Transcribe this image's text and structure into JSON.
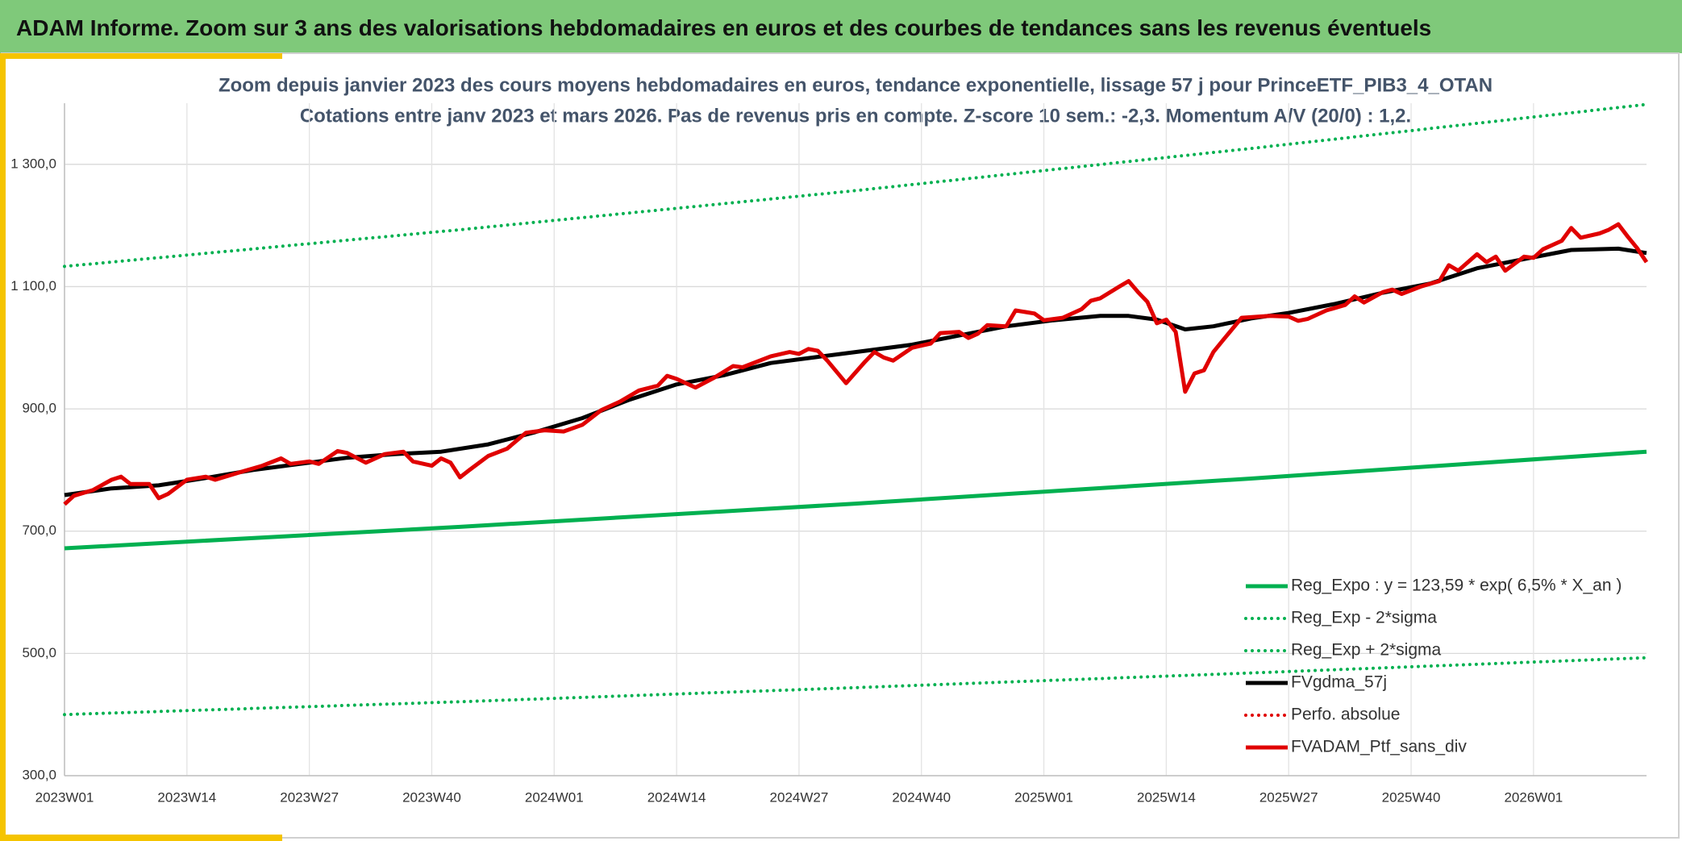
{
  "header": {
    "title": "ADAM Informe. Zoom sur 3 ans des valorisations hebdomadaires en euros et des courbes de tendances sans les revenus éventuels"
  },
  "chart_data": {
    "type": "line",
    "title": "Zoom depuis janvier 2023 des cours moyens hebdomadaires en euros, tendance exponentielle, lissage 57 j pour PrinceETF_PIB3_4_OTAN",
    "subtitle": "Cotations entre janv 2023 et mars 2026. Pas de revenus pris en compte. Z-score 10 sem.: -2,3. Momentum A/V (20/0) : 1,2.",
    "xlim": [
      0,
      168
    ],
    "xticks": [
      {
        "value": 0,
        "label": "2023W01"
      },
      {
        "value": 13,
        "label": "2023W14"
      },
      {
        "value": 26,
        "label": "2023W27"
      },
      {
        "value": 39,
        "label": "2023W40"
      },
      {
        "value": 52,
        "label": "2024W01"
      },
      {
        "value": 65,
        "label": "2024W14"
      },
      {
        "value": 78,
        "label": "2024W27"
      },
      {
        "value": 91,
        "label": "2024W40"
      },
      {
        "value": 104,
        "label": "2025W01"
      },
      {
        "value": 117,
        "label": "2025W14"
      },
      {
        "value": 130,
        "label": "2025W27"
      },
      {
        "value": 143,
        "label": "2025W40"
      },
      {
        "value": 156,
        "label": "2026W01"
      }
    ],
    "ylim": [
      300,
      1400
    ],
    "yticks": [
      {
        "value": 300,
        "label": "300,0"
      },
      {
        "value": 500,
        "label": "500,0"
      },
      {
        "value": 700,
        "label": "700,0"
      },
      {
        "value": 900,
        "label": "900,0"
      },
      {
        "value": 1100,
        "label": "1 100,0"
      },
      {
        "value": 1300,
        "label": "1 300,0"
      }
    ],
    "grid": true,
    "legend": "bottom-right",
    "series": [
      {
        "name": "Reg_Expo : y = 123,59 * exp( 6,5% *  X_an )",
        "color": "#00b050",
        "style": "solid",
        "x": [
          0,
          42,
          84,
          126,
          168
        ],
        "values": [
          672,
          707,
          745,
          786,
          830
        ]
      },
      {
        "name": "Reg_Exp - 2*sigma",
        "color": "#00b050",
        "style": "dotted",
        "x": [
          0,
          42,
          84,
          126,
          168
        ],
        "values": [
          400,
          421,
          444,
          468,
          493
        ]
      },
      {
        "name": "Reg_Exp + 2*sigma",
        "color": "#00b050",
        "style": "dotted",
        "x": [
          0,
          42,
          84,
          126,
          168
        ],
        "values": [
          1133,
          1193,
          1257,
          1326,
          1398
        ]
      },
      {
        "name": "FVgdma_57j",
        "color": "#000000",
        "style": "solid",
        "x": [
          0,
          5,
          10,
          15,
          20,
          25,
          30,
          35,
          40,
          45,
          50,
          55,
          60,
          65,
          70,
          75,
          80,
          85,
          90,
          95,
          100,
          105,
          110,
          113,
          116,
          119,
          122,
          126,
          130,
          135,
          140,
          145,
          150,
          155,
          160,
          165,
          168
        ],
        "values": [
          759,
          770,
          775,
          787,
          800,
          810,
          820,
          826,
          830,
          842,
          862,
          885,
          915,
          940,
          955,
          975,
          985,
          995,
          1005,
          1020,
          1035,
          1045,
          1052,
          1052,
          1046,
          1030,
          1035,
          1048,
          1057,
          1072,
          1090,
          1105,
          1130,
          1145,
          1160,
          1162,
          1155
        ]
      },
      {
        "name": "Perfo. absolue",
        "color": "#e00000",
        "style": "dotted",
        "x": [],
        "values": []
      },
      {
        "name": "FVADAM_Ptf_sans_div",
        "color": "#e00000",
        "style": "solid",
        "x": [
          0,
          1,
          3,
          5,
          6,
          7,
          9,
          10,
          11,
          13,
          15,
          16,
          19,
          21,
          23,
          24,
          26,
          27,
          29,
          30,
          32,
          34,
          36,
          37,
          39,
          40,
          41,
          42,
          43,
          45,
          47,
          49,
          51,
          53,
          55,
          57,
          59,
          61,
          63,
          64,
          65,
          67,
          69,
          71,
          72,
          73,
          75,
          77,
          78,
          79,
          80,
          81,
          83,
          85,
          86,
          87,
          88,
          90,
          92,
          93,
          95,
          96,
          97,
          98,
          100,
          101,
          103,
          104,
          106,
          108,
          109,
          110,
          112,
          113,
          114,
          115,
          116,
          117,
          118,
          119,
          120,
          121,
          122,
          123,
          125,
          128,
          130,
          131,
          132,
          134,
          136,
          137,
          138,
          140,
          141,
          142,
          144,
          146,
          147,
          148,
          150,
          151,
          152,
          153,
          155,
          156,
          157,
          159,
          160,
          161,
          163,
          164,
          165,
          166,
          167,
          168
        ],
        "values": [
          744,
          758,
          767,
          784,
          789,
          777,
          777,
          754,
          761,
          784,
          789,
          784,
          798,
          807,
          819,
          810,
          814,
          810,
          831,
          828,
          812,
          826,
          830,
          814,
          807,
          819,
          812,
          788,
          800,
          823,
          835,
          861,
          865,
          863,
          874,
          898,
          912,
          930,
          938,
          954,
          949,
          935,
          951,
          970,
          968,
          974,
          986,
          993,
          990,
          998,
          995,
          979,
          942,
          977,
          993,
          984,
          979,
          1000,
          1007,
          1024,
          1026,
          1016,
          1023,
          1037,
          1035,
          1061,
          1056,
          1045,
          1049,
          1063,
          1077,
          1081,
          1100,
          1109,
          1091,
          1075,
          1040,
          1046,
          1026,
          928,
          958,
          963,
          993,
          1012,
          1049,
          1052,
          1051,
          1044,
          1047,
          1061,
          1070,
          1084,
          1074,
          1091,
          1095,
          1088,
          1100,
          1109,
          1135,
          1126,
          1153,
          1140,
          1149,
          1126,
          1149,
          1147,
          1161,
          1175,
          1196,
          1180,
          1187,
          1193,
          1202,
          1182,
          1163,
          1140
        ]
      }
    ]
  }
}
